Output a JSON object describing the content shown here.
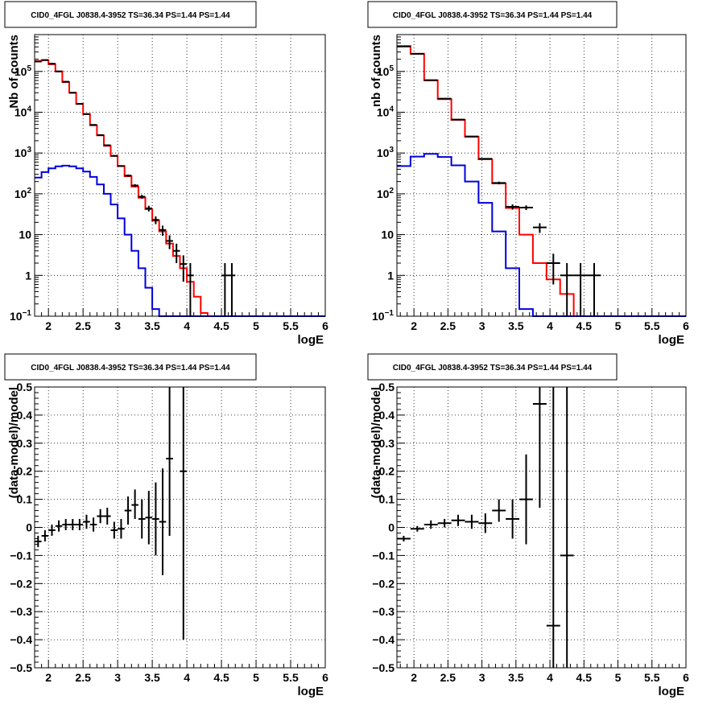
{
  "chart_data": [
    {
      "type": "line",
      "title": "CID0_4FGL J0838.4-3952 TS=36.34 PS=1.44 PS=1.44",
      "xlabel": "logE",
      "ylabel": "Nb of counts",
      "xlim": [
        1.8,
        6.0
      ],
      "ylim": [
        0.1,
        800000
      ],
      "yscale": "log",
      "grid": true,
      "x_ticks": [
        "2",
        "2.5",
        "3",
        "3.5",
        "4",
        "4.5",
        "5",
        "5.5",
        "6"
      ],
      "y_ticks": [
        {
          "v": 0.1,
          "base": "10",
          "exp": "−1"
        },
        {
          "v": 1,
          "label": "1"
        },
        {
          "v": 10,
          "label": "10"
        },
        {
          "v": 100,
          "base": "10",
          "exp": "2"
        },
        {
          "v": 1000,
          "base": "10",
          "exp": "3"
        },
        {
          "v": 10000,
          "base": "10",
          "exp": "4"
        },
        {
          "v": 100000,
          "base": "10",
          "exp": "5"
        }
      ],
      "bin_edges": [
        1.8,
        1.9,
        2.0,
        2.1,
        2.2,
        2.3,
        2.4,
        2.5,
        2.6,
        2.7,
        2.8,
        2.9,
        3.0,
        3.1,
        3.2,
        3.3,
        3.4,
        3.5,
        3.6,
        3.7,
        3.8,
        3.9,
        4.0,
        4.1,
        4.2,
        4.3,
        4.4,
        4.5,
        4.6,
        4.7,
        4.8,
        4.9,
        5.0,
        5.1,
        5.2,
        5.3,
        5.4,
        5.5,
        5.6,
        5.7,
        5.8,
        5.9,
        6.0
      ],
      "series": [
        {
          "color": "#ff0000",
          "values": [
            180000,
            190000,
            150000,
            100000,
            55000,
            30000,
            16000,
            9000,
            4800,
            2700,
            1500,
            850,
            480,
            270,
            150,
            80,
            42,
            22,
            12,
            6,
            3,
            1.5,
            0.7,
            0.3,
            0.12,
            0.1,
            0.1,
            0.1,
            0.1,
            0.1,
            0.1,
            0.1,
            0.1,
            0.1,
            0.1,
            0.1,
            0.1,
            0.1,
            0.1,
            0.1,
            0.1,
            0.1
          ]
        },
        {
          "color": "#0000dd",
          "values": [
            250,
            340,
            420,
            470,
            490,
            470,
            420,
            350,
            260,
            170,
            100,
            55,
            25,
            10,
            4,
            1.5,
            0.5,
            0.15,
            0.1,
            0.1,
            0.1,
            0.1,
            0.1,
            0.1,
            0.1,
            0.1,
            0.1,
            0.1,
            0.1,
            0.1,
            0.1,
            0.1,
            0.1,
            0.1,
            0.1,
            0.1,
            0.1,
            0.1,
            0.1,
            0.1,
            0.1,
            0.1
          ]
        }
      ],
      "data_points": [
        {
          "x": 1.85,
          "y": 175000,
          "dx": 0.05,
          "lo": 174500,
          "hi": 175500
        },
        {
          "x": 1.95,
          "y": 190000,
          "dx": 0.05,
          "lo": 189500,
          "hi": 190500
        },
        {
          "x": 2.05,
          "y": 155000,
          "dx": 0.05,
          "lo": 154500,
          "hi": 155500
        },
        {
          "x": 2.15,
          "y": 100000,
          "dx": 0.05,
          "lo": 99700,
          "hi": 100300
        },
        {
          "x": 2.25,
          "y": 56000,
          "dx": 0.05,
          "lo": 55700,
          "hi": 56300
        },
        {
          "x": 2.35,
          "y": 30000,
          "dx": 0.05,
          "lo": 29800,
          "hi": 30200
        },
        {
          "x": 2.45,
          "y": 16000,
          "dx": 0.05,
          "lo": 15900,
          "hi": 16100
        },
        {
          "x": 2.55,
          "y": 9000,
          "dx": 0.05,
          "lo": 8900,
          "hi": 9100
        },
        {
          "x": 2.65,
          "y": 4900,
          "dx": 0.05,
          "lo": 4830,
          "hi": 4970
        },
        {
          "x": 2.75,
          "y": 2750,
          "dx": 0.05,
          "lo": 2700,
          "hi": 2800
        },
        {
          "x": 2.85,
          "y": 1550,
          "dx": 0.05,
          "lo": 1510,
          "hi": 1590
        },
        {
          "x": 2.95,
          "y": 850,
          "dx": 0.05,
          "lo": 820,
          "hi": 880
        },
        {
          "x": 3.05,
          "y": 480,
          "dx": 0.05,
          "lo": 460,
          "hi": 500
        },
        {
          "x": 3.15,
          "y": 280,
          "dx": 0.05,
          "lo": 263,
          "hi": 297
        },
        {
          "x": 3.25,
          "y": 160,
          "dx": 0.05,
          "lo": 147,
          "hi": 173
        },
        {
          "x": 3.35,
          "y": 85,
          "dx": 0.05,
          "lo": 76,
          "hi": 94
        },
        {
          "x": 3.45,
          "y": 44,
          "dx": 0.05,
          "lo": 37,
          "hi": 51
        },
        {
          "x": 3.55,
          "y": 23,
          "dx": 0.05,
          "lo": 18,
          "hi": 28
        },
        {
          "x": 3.65,
          "y": 13,
          "dx": 0.05,
          "lo": 9.4,
          "hi": 16.6
        },
        {
          "x": 3.75,
          "y": 7,
          "dx": 0.05,
          "lo": 4.4,
          "hi": 9.6
        },
        {
          "x": 3.85,
          "y": 4,
          "dx": 0.05,
          "lo": 2.0,
          "hi": 6.0
        },
        {
          "x": 3.95,
          "y": 1.9,
          "dx": 0.05,
          "lo": 0.7,
          "hi": 3.1
        },
        {
          "x": 4.05,
          "y": 1.0,
          "dx": 0.05,
          "lo": 0.1,
          "hi": 2.0
        },
        {
          "x": 4.55,
          "y": 1.0,
          "dx": 0.05,
          "lo": 0.1,
          "hi": 2.0
        },
        {
          "x": 4.65,
          "y": 1.0,
          "dx": 0.05,
          "lo": 0.1,
          "hi": 2.0
        }
      ]
    },
    {
      "type": "line",
      "title": "CID0_4FGL J0838.4-3952 TS=36.34 PS=1.44 PS=1.44",
      "xlabel": "logE",
      "ylabel": "nb of counts",
      "xlim": [
        1.75,
        6.0
      ],
      "ylim": [
        0.1,
        800000
      ],
      "yscale": "log",
      "grid": true,
      "x_ticks": [
        "2",
        "2.5",
        "3",
        "3.5",
        "4",
        "4.5",
        "5",
        "5.5",
        "6"
      ],
      "y_ticks": [
        {
          "v": 0.1,
          "base": "10",
          "exp": "−1"
        },
        {
          "v": 1,
          "label": "1"
        },
        {
          "v": 10,
          "label": "10"
        },
        {
          "v": 100,
          "base": "10",
          "exp": "2"
        },
        {
          "v": 1000,
          "base": "10",
          "exp": "3"
        },
        {
          "v": 10000,
          "base": "10",
          "exp": "4"
        },
        {
          "v": 100000,
          "base": "10",
          "exp": "5"
        }
      ],
      "bin_edges": [
        1.75,
        1.95,
        2.15,
        2.35,
        2.55,
        2.75,
        2.95,
        3.15,
        3.35,
        3.55,
        3.75,
        3.95,
        4.15,
        4.35,
        4.55,
        4.75,
        4.95,
        5.15,
        5.35,
        5.55,
        5.75,
        6.0
      ],
      "series": [
        {
          "color": "#ff0000",
          "values": [
            420000,
            270000,
            60000,
            21000,
            6500,
            2500,
            700,
            180,
            45,
            10,
            2,
            0.8,
            0.35,
            0.1,
            0.1,
            0.1,
            0.1,
            0.1,
            0.1,
            0.1,
            0.1
          ]
        },
        {
          "color": "#0000dd",
          "values": [
            480,
            820,
            950,
            800,
            500,
            200,
            60,
            12,
            1.5,
            0.15,
            0.1,
            0.1,
            0.1,
            0.1,
            0.1,
            0.1,
            0.1,
            0.1,
            0.1,
            0.1,
            0.1
          ]
        }
      ],
      "data_points": [
        {
          "x": 1.85,
          "y": 410000,
          "dx": 0.1,
          "lo": 409000,
          "hi": 411000
        },
        {
          "x": 2.05,
          "y": 270000,
          "dx": 0.1,
          "lo": 269500,
          "hi": 270500
        },
        {
          "x": 2.25,
          "y": 61000,
          "dx": 0.1,
          "lo": 60700,
          "hi": 61300
        },
        {
          "x": 2.45,
          "y": 21500,
          "dx": 0.1,
          "lo": 21300,
          "hi": 21700
        },
        {
          "x": 2.65,
          "y": 6600,
          "dx": 0.1,
          "lo": 6500,
          "hi": 6700
        },
        {
          "x": 2.85,
          "y": 2550,
          "dx": 0.1,
          "lo": 2500,
          "hi": 2600
        },
        {
          "x": 3.05,
          "y": 720,
          "dx": 0.1,
          "lo": 690,
          "hi": 750
        },
        {
          "x": 3.25,
          "y": 185,
          "dx": 0.1,
          "lo": 171,
          "hi": 199
        },
        {
          "x": 3.45,
          "y": 48,
          "dx": 0.1,
          "lo": 41,
          "hi": 55
        },
        {
          "x": 3.65,
          "y": 46,
          "dx": 0.1,
          "lo": 40,
          "hi": 52
        },
        {
          "x": 3.85,
          "y": 15,
          "dx": 0.1,
          "lo": 11,
          "hi": 19
        },
        {
          "x": 4.05,
          "y": 2.0,
          "dx": 0.1,
          "lo": 0.6,
          "hi": 3.4
        },
        {
          "x": 4.25,
          "y": 1.0,
          "dx": 0.1,
          "lo": 0.1,
          "hi": 2.0
        },
        {
          "x": 4.45,
          "y": 1.0,
          "dx": 0.1,
          "lo": 0.1,
          "hi": 2.0
        },
        {
          "x": 4.65,
          "y": 1.0,
          "dx": 0.1,
          "lo": 0.1,
          "hi": 2.0
        }
      ]
    },
    {
      "type": "scatter",
      "title": "CID0_4FGL J0838.4-3952 TS=36.34 PS=1.44 PS=1.44",
      "xlabel": "logE",
      "ylabel": "(data-model)/model",
      "xlim": [
        1.8,
        6.0
      ],
      "ylim": [
        -0.5,
        0.5
      ],
      "grid": true,
      "x_ticks": [
        "2",
        "2.5",
        "3",
        "3.5",
        "4",
        "4.5",
        "5",
        "5.5",
        "6"
      ],
      "y_ticks": [
        "−0.5",
        "−0.4",
        "−0.3",
        "−0.2",
        "−0.1",
        "0",
        "0.1",
        "0.2",
        "0.3",
        "0.4",
        "0.5"
      ],
      "data_points": [
        {
          "x": 1.85,
          "y": -0.05,
          "dx": 0.05,
          "lo": -0.07,
          "hi": -0.03
        },
        {
          "x": 1.95,
          "y": -0.03,
          "dx": 0.05,
          "lo": -0.05,
          "hi": -0.01
        },
        {
          "x": 2.05,
          "y": -0.01,
          "dx": 0.05,
          "lo": -0.03,
          "hi": 0.01
        },
        {
          "x": 2.15,
          "y": 0.005,
          "dx": 0.05,
          "lo": -0.015,
          "hi": 0.025
        },
        {
          "x": 2.25,
          "y": 0.01,
          "dx": 0.05,
          "lo": -0.01,
          "hi": 0.03
        },
        {
          "x": 2.35,
          "y": 0.01,
          "dx": 0.05,
          "lo": -0.01,
          "hi": 0.03
        },
        {
          "x": 2.45,
          "y": 0.01,
          "dx": 0.05,
          "lo": -0.01,
          "hi": 0.03
        },
        {
          "x": 2.55,
          "y": 0.02,
          "dx": 0.05,
          "lo": -0.005,
          "hi": 0.045
        },
        {
          "x": 2.65,
          "y": 0.01,
          "dx": 0.05,
          "lo": -0.015,
          "hi": 0.035
        },
        {
          "x": 2.75,
          "y": 0.04,
          "dx": 0.05,
          "lo": 0.015,
          "hi": 0.065
        },
        {
          "x": 2.85,
          "y": 0.04,
          "dx": 0.05,
          "lo": 0.01,
          "hi": 0.07
        },
        {
          "x": 2.95,
          "y": -0.01,
          "dx": 0.05,
          "lo": -0.04,
          "hi": 0.02
        },
        {
          "x": 3.05,
          "y": -0.005,
          "dx": 0.05,
          "lo": -0.04,
          "hi": 0.03
        },
        {
          "x": 3.15,
          "y": 0.06,
          "dx": 0.05,
          "lo": 0.01,
          "hi": 0.11
        },
        {
          "x": 3.25,
          "y": 0.08,
          "dx": 0.05,
          "lo": 0.03,
          "hi": 0.135
        },
        {
          "x": 3.35,
          "y": 0.03,
          "dx": 0.05,
          "lo": -0.04,
          "hi": 0.1
        },
        {
          "x": 3.45,
          "y": 0.035,
          "dx": 0.05,
          "lo": -0.06,
          "hi": 0.13
        },
        {
          "x": 3.55,
          "y": 0.03,
          "dx": 0.05,
          "lo": -0.1,
          "hi": 0.16
        },
        {
          "x": 3.65,
          "y": 0.02,
          "dx": 0.05,
          "lo": -0.17,
          "hi": 0.21
        },
        {
          "x": 3.75,
          "y": 0.245,
          "dx": 0.05,
          "lo": -0.03,
          "hi": 0.5
        },
        {
          "x": 3.95,
          "y": 0.2,
          "dx": 0.05,
          "lo": -0.4,
          "hi": 0.5
        }
      ]
    },
    {
      "type": "scatter",
      "title": "CID0_4FGL J0838.4-3952 TS=36.34 PS=1.44 PS=1.44",
      "xlabel": "logE",
      "ylabel": "(data-model)/model",
      "xlim": [
        1.75,
        6.0
      ],
      "ylim": [
        -0.5,
        0.5
      ],
      "grid": true,
      "x_ticks": [
        "2",
        "2.5",
        "3",
        "3.5",
        "4",
        "4.5",
        "5",
        "5.5",
        "6"
      ],
      "y_ticks": [
        "−0.5",
        "−0.4",
        "−0.3",
        "−0.2",
        "−0.1",
        "0",
        "0.1",
        "0.2",
        "0.3",
        "0.4",
        "0.5"
      ],
      "data_points": [
        {
          "x": 1.85,
          "y": -0.04,
          "dx": 0.1,
          "lo": -0.05,
          "hi": -0.03
        },
        {
          "x": 2.05,
          "y": -0.005,
          "dx": 0.1,
          "lo": -0.015,
          "hi": 0.005
        },
        {
          "x": 2.25,
          "y": 0.01,
          "dx": 0.1,
          "lo": -0.005,
          "hi": 0.025
        },
        {
          "x": 2.45,
          "y": 0.015,
          "dx": 0.1,
          "lo": 0.0,
          "hi": 0.03
        },
        {
          "x": 2.65,
          "y": 0.025,
          "dx": 0.1,
          "lo": 0.005,
          "hi": 0.045
        },
        {
          "x": 2.85,
          "y": 0.02,
          "dx": 0.1,
          "lo": -0.005,
          "hi": 0.045
        },
        {
          "x": 3.05,
          "y": 0.015,
          "dx": 0.1,
          "lo": -0.02,
          "hi": 0.05
        },
        {
          "x": 3.25,
          "y": 0.06,
          "dx": 0.1,
          "lo": 0.02,
          "hi": 0.1
        },
        {
          "x": 3.45,
          "y": 0.03,
          "dx": 0.1,
          "lo": -0.04,
          "hi": 0.1
        },
        {
          "x": 3.65,
          "y": 0.1,
          "dx": 0.1,
          "lo": -0.06,
          "hi": 0.26
        },
        {
          "x": 3.85,
          "y": 0.44,
          "dx": 0.1,
          "lo": 0.07,
          "hi": 0.5
        },
        {
          "x": 4.05,
          "y": -0.35,
          "dx": 0.1,
          "lo": -0.5,
          "hi": 0.5
        },
        {
          "x": 4.25,
          "y": -0.1,
          "dx": 0.1,
          "lo": -0.5,
          "hi": 0.5
        }
      ]
    }
  ]
}
